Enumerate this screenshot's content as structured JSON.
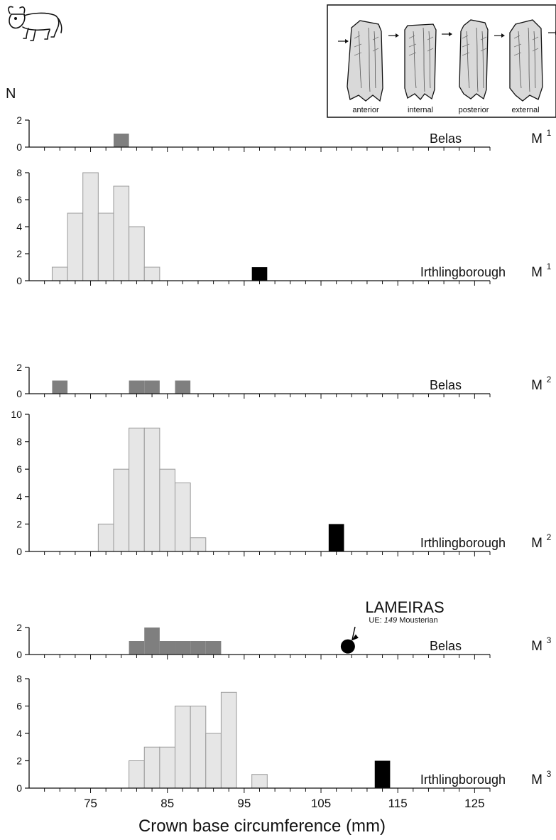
{
  "chart_data": {
    "type": "bar",
    "y_axis_label": "N",
    "x_axis_title": "Crown base circumference (mm)",
    "x_range": [
      67,
      127
    ],
    "bin_width": 2,
    "x_ticks": [
      75,
      85,
      95,
      105,
      115,
      125
    ],
    "colors": {
      "belas": "#7f7f7f",
      "irthlingborough": "#e6e6e6",
      "outlier": "#000000",
      "axis": "#111111"
    },
    "panels": [
      {
        "site": "Belas",
        "tooth": "M",
        "tooth_sup": "1",
        "ylim": [
          0,
          2
        ],
        "yticks": [
          0,
          2
        ],
        "style": "belas",
        "bins": [
          {
            "x": 78,
            "n": 1
          }
        ]
      },
      {
        "site": "Irthlingborough",
        "tooth": "M",
        "tooth_sup": "1",
        "ylim": [
          0,
          8
        ],
        "yticks": [
          0,
          2,
          4,
          6,
          8
        ],
        "style": "irth",
        "bins": [
          {
            "x": 70,
            "n": 1
          },
          {
            "x": 72,
            "n": 5
          },
          {
            "x": 74,
            "n": 8
          },
          {
            "x": 76,
            "n": 5
          },
          {
            "x": 78,
            "n": 7
          },
          {
            "x": 80,
            "n": 4
          },
          {
            "x": 82,
            "n": 1
          }
        ],
        "outliers": [
          {
            "x": 96,
            "n": 1
          }
        ]
      },
      {
        "site": "Belas",
        "tooth": "M",
        "tooth_sup": "2",
        "ylim": [
          0,
          2
        ],
        "yticks": [
          0,
          2
        ],
        "style": "belas",
        "bins": [
          {
            "x": 70,
            "n": 1
          },
          {
            "x": 80,
            "n": 1
          },
          {
            "x": 82,
            "n": 1
          },
          {
            "x": 86,
            "n": 1
          }
        ]
      },
      {
        "site": "Irthlingborough",
        "tooth": "M",
        "tooth_sup": "2",
        "ylim": [
          0,
          10
        ],
        "yticks": [
          0,
          2,
          4,
          6,
          8,
          10
        ],
        "style": "irth",
        "bins": [
          {
            "x": 76,
            "n": 2
          },
          {
            "x": 78,
            "n": 6
          },
          {
            "x": 80,
            "n": 9
          },
          {
            "x": 82,
            "n": 9
          },
          {
            "x": 84,
            "n": 6
          },
          {
            "x": 86,
            "n": 5
          },
          {
            "x": 88,
            "n": 1
          }
        ],
        "outliers": [
          {
            "x": 106,
            "n": 2
          }
        ]
      },
      {
        "site": "Belas",
        "tooth": "M",
        "tooth_sup": "3",
        "ylim": [
          0,
          2
        ],
        "yticks": [
          0,
          2
        ],
        "style": "belas",
        "bins": [
          {
            "x": 80,
            "n": 1
          },
          {
            "x": 82,
            "n": 2
          },
          {
            "x": 84,
            "n": 1
          },
          {
            "x": 86,
            "n": 1
          },
          {
            "x": 88,
            "n": 1
          },
          {
            "x": 90,
            "n": 1
          }
        ]
      },
      {
        "site": "Irthlingborough",
        "tooth": "M",
        "tooth_sup": "3",
        "ylim": [
          0,
          8
        ],
        "yticks": [
          0,
          2,
          4,
          6,
          8
        ],
        "style": "irth",
        "bins": [
          {
            "x": 80,
            "n": 2
          },
          {
            "x": 82,
            "n": 3
          },
          {
            "x": 84,
            "n": 3
          },
          {
            "x": 86,
            "n": 6
          },
          {
            "x": 88,
            "n": 6
          },
          {
            "x": 90,
            "n": 4
          },
          {
            "x": 92,
            "n": 7
          },
          {
            "x": 96,
            "n": 1
          }
        ],
        "outliers": [
          {
            "x": 112,
            "n": 2
          }
        ]
      }
    ],
    "annotation": {
      "title": "LAMEIRAS",
      "prefix": "UE: ",
      "number": "149",
      "suffix": " Mousterian",
      "panel": 4,
      "x": 108.5,
      "y": 0.6
    },
    "inset_views": [
      "anterior",
      "internal",
      "posterior",
      "external"
    ]
  }
}
